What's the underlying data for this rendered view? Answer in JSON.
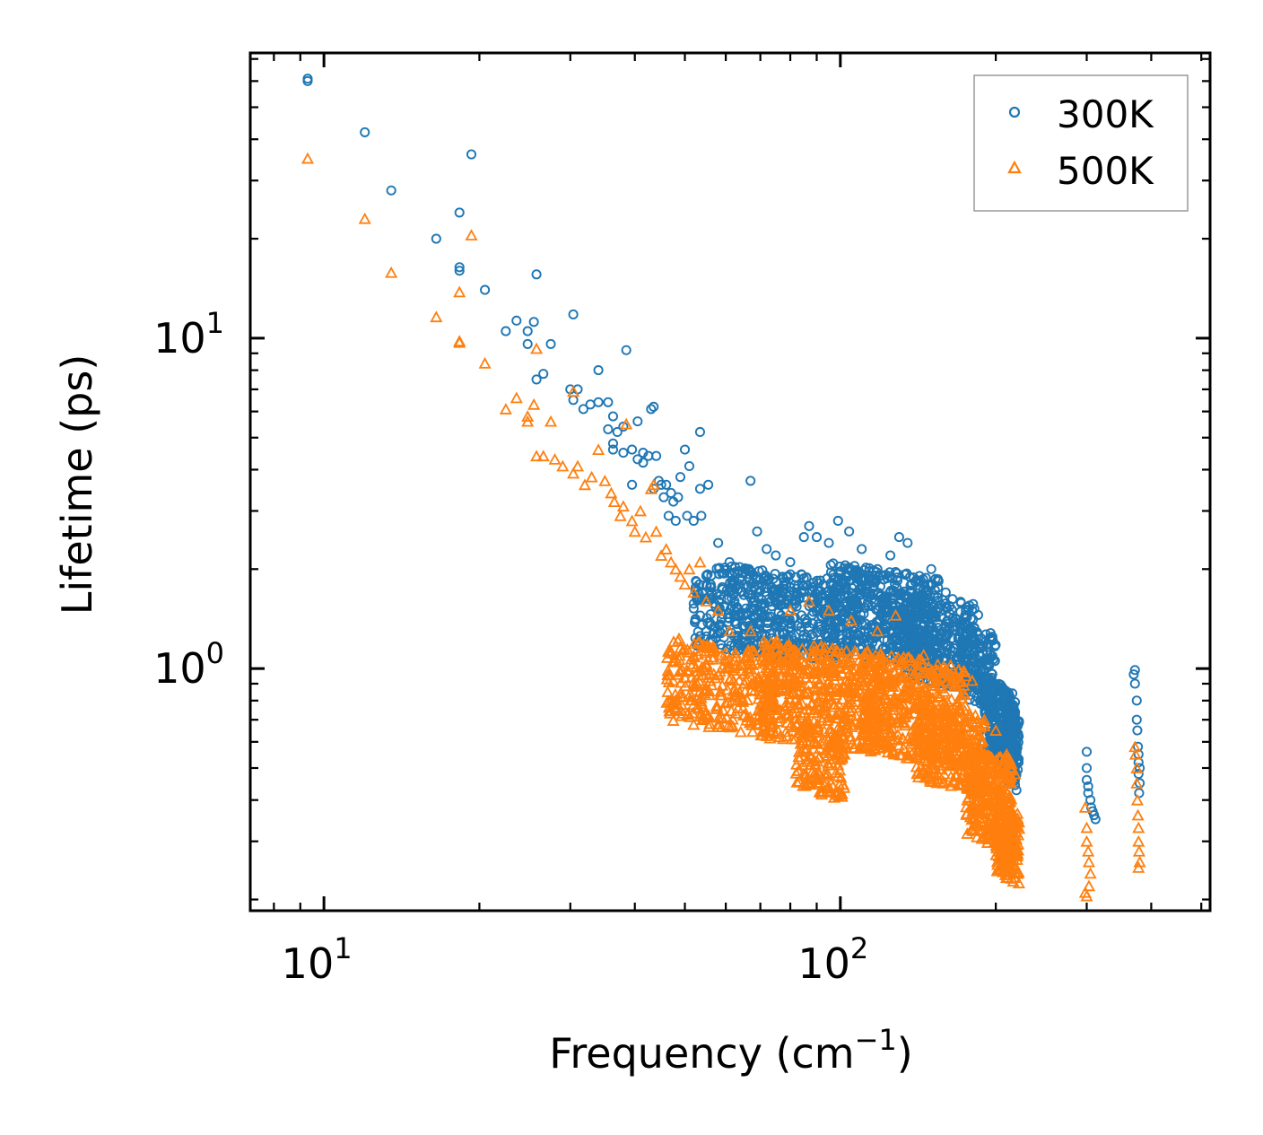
{
  "chart_data": {
    "type": "scatter",
    "title": "",
    "xlabel": "Frequency (cm",
    "xlabel_sup": "−1",
    "xlabel_close": ")",
    "ylabel": "Lifetime (ps)",
    "xscale": "log",
    "yscale": "log",
    "xlim": [
      7.2,
      520
    ],
    "ylim": [
      0.185,
      73
    ],
    "x_major_ticks": [
      {
        "value": 10,
        "base": "10",
        "exp": "1"
      },
      {
        "value": 100,
        "base": "10",
        "exp": "2"
      }
    ],
    "y_major_ticks": [
      {
        "value": 1,
        "base": "10",
        "exp": "0"
      },
      {
        "value": 10,
        "base": "10",
        "exp": "1"
      }
    ],
    "ticks_direction": "in",
    "ticks_on_all_sides": true,
    "grid": false,
    "legend_position": "top-right",
    "series": [
      {
        "name": "300K",
        "label": "300K",
        "marker": "circle-open",
        "color": "#1f77b4",
        "points": [
          [
            9.3,
            60
          ],
          [
            9.3,
            61
          ],
          [
            12,
            42
          ],
          [
            13.5,
            28
          ],
          [
            16.5,
            20
          ],
          [
            18.3,
            24
          ],
          [
            18.3,
            16
          ],
          [
            18.3,
            16.4
          ],
          [
            19.3,
            36
          ],
          [
            20.5,
            14
          ],
          [
            22.5,
            10.5
          ],
          [
            23.6,
            11.3
          ],
          [
            24.8,
            10.5
          ],
          [
            24.8,
            9.6
          ],
          [
            25.5,
            11.2
          ],
          [
            25.8,
            15.6
          ],
          [
            25.8,
            7.5
          ],
          [
            26.6,
            7.8
          ],
          [
            27.5,
            9.6
          ],
          [
            30,
            7
          ],
          [
            30.4,
            11.8
          ],
          [
            30.4,
            6.5
          ],
          [
            31,
            7
          ],
          [
            31.8,
            6.1
          ],
          [
            32.8,
            6.3
          ],
          [
            34,
            8
          ],
          [
            34,
            6.4
          ],
          [
            35.5,
            5.3
          ],
          [
            35.5,
            6.4
          ],
          [
            36.3,
            5.8
          ],
          [
            36.3,
            4.8
          ],
          [
            36.3,
            4.6
          ],
          [
            37,
            5.2
          ],
          [
            38,
            5.4
          ],
          [
            38,
            4.5
          ],
          [
            38.5,
            9.2
          ],
          [
            39.5,
            4.6
          ],
          [
            39.5,
            3.6
          ],
          [
            40.5,
            4.3
          ],
          [
            40.5,
            5.6
          ],
          [
            41.5,
            4.5
          ],
          [
            41.5,
            4.2
          ],
          [
            42.5,
            4.4
          ],
          [
            43,
            6.1
          ],
          [
            43.5,
            6.2
          ],
          [
            43.5,
            3.5
          ],
          [
            44,
            4.4
          ],
          [
            44.5,
            3.7
          ],
          [
            45,
            3.6
          ],
          [
            45.5,
            3.3
          ],
          [
            46,
            3.6
          ],
          [
            46.5,
            2.9
          ],
          [
            47,
            3.4
          ],
          [
            47.5,
            3.2
          ],
          [
            48,
            2.8
          ],
          [
            48.5,
            3.3
          ],
          [
            49,
            3.8
          ],
          [
            50,
            4.6
          ],
          [
            50.5,
            2.9
          ],
          [
            51,
            4.1
          ],
          [
            52,
            2.8
          ],
          [
            53.5,
            5.2
          ],
          [
            53.5,
            3.5
          ],
          [
            53.8,
            2.9
          ],
          [
            55.5,
            3.6
          ],
          [
            58,
            2.4
          ],
          [
            61,
            2.1
          ],
          [
            67,
            3.7
          ],
          [
            69,
            2.6
          ],
          [
            72,
            2.3
          ],
          [
            75,
            2.2
          ],
          [
            80,
            2.1
          ],
          [
            85,
            2.5
          ],
          [
            87,
            2.7
          ],
          [
            90,
            2.5
          ],
          [
            95,
            2.4
          ],
          [
            99,
            2.8
          ],
          [
            104,
            2.6
          ],
          [
            110,
            2.3
          ],
          [
            118,
            2.0
          ],
          [
            125,
            2.2
          ],
          [
            130,
            2.5
          ],
          [
            135,
            2.4
          ],
          [
            145,
            1.8
          ],
          [
            150,
            2.0
          ],
          [
            160,
            1.7
          ],
          [
            175,
            1.5
          ],
          [
            180,
            1.5
          ],
          [
            190,
            1.2
          ],
          [
            195,
            1.1
          ],
          [
            300,
            0.56
          ],
          [
            300,
            0.5
          ],
          [
            300,
            0.46
          ],
          [
            302,
            0.44
          ],
          [
            302,
            0.42
          ],
          [
            305,
            0.4
          ],
          [
            306,
            0.38
          ],
          [
            308,
            0.37
          ],
          [
            310,
            0.36
          ],
          [
            312,
            0.35
          ],
          [
            370,
            0.96
          ],
          [
            372,
            0.99
          ],
          [
            372,
            0.9
          ],
          [
            375,
            0.8
          ],
          [
            375,
            0.7
          ],
          [
            376,
            0.65
          ],
          [
            377,
            0.58
          ],
          [
            378,
            0.55
          ],
          [
            378,
            0.52
          ],
          [
            380,
            0.5
          ],
          [
            378,
            0.48
          ],
          [
            380,
            0.45
          ],
          [
            379,
            0.42
          ]
        ],
        "clusters": [
          {
            "x": [
              52,
              98
            ],
            "y": [
              1.05,
              2.1
            ],
            "count": 520
          },
          {
            "x": [
              95,
              155
            ],
            "y": [
              1.0,
              2.1
            ],
            "count": 520
          },
          {
            "x": [
              130,
              185
            ],
            "y": [
              0.85,
              1.75
            ],
            "count": 300
          },
          {
            "x": [
              170,
              200
            ],
            "y": [
              0.75,
              1.4
            ],
            "count": 160
          },
          {
            "x": [
              190,
              218
            ],
            "y": [
              0.48,
              0.95
            ],
            "count": 280
          },
          {
            "x": [
              208,
              222
            ],
            "y": [
              0.42,
              0.78
            ],
            "count": 130
          }
        ]
      },
      {
        "name": "500K",
        "label": "500K",
        "marker": "triangle-open",
        "color": "#ff7f0e",
        "points": [
          [
            9.3,
            35
          ],
          [
            12,
            23
          ],
          [
            13.5,
            15.8
          ],
          [
            16.5,
            11.6
          ],
          [
            18.3,
            13.8
          ],
          [
            18.3,
            9.7
          ],
          [
            18.3,
            9.8
          ],
          [
            19.3,
            20.5
          ],
          [
            20.5,
            8.4
          ],
          [
            22.5,
            6.1
          ],
          [
            23.6,
            6.6
          ],
          [
            24.8,
            5.8
          ],
          [
            24.8,
            5.6
          ],
          [
            25.5,
            6.3
          ],
          [
            25.8,
            9.3
          ],
          [
            25.8,
            4.4
          ],
          [
            26.6,
            4.4
          ],
          [
            27.5,
            5.6
          ],
          [
            28,
            4.3
          ],
          [
            29,
            4.1
          ],
          [
            30.4,
            6.9
          ],
          [
            30.4,
            3.9
          ],
          [
            31,
            4.1
          ],
          [
            32,
            3.6
          ],
          [
            33,
            3.8
          ],
          [
            34,
            4.6
          ],
          [
            35,
            3.7
          ],
          [
            36,
            3.4
          ],
          [
            36.5,
            3.2
          ],
          [
            37.5,
            2.9
          ],
          [
            38.5,
            5.5
          ],
          [
            38,
            3.1
          ],
          [
            39.5,
            2.8
          ],
          [
            40,
            2.6
          ],
          [
            41,
            3.0
          ],
          [
            42,
            2.5
          ],
          [
            43,
            3.5
          ],
          [
            43.5,
            3.6
          ],
          [
            44,
            2.6
          ],
          [
            45,
            2.2
          ],
          [
            46,
            2.3
          ],
          [
            47,
            2.1
          ],
          [
            48,
            2.0
          ],
          [
            49,
            1.9
          ],
          [
            50,
            1.8
          ],
          [
            51,
            2.0
          ],
          [
            52,
            1.7
          ],
          [
            53.5,
            2.1
          ],
          [
            55,
            1.6
          ],
          [
            58,
            1.5
          ],
          [
            61,
            1.3
          ],
          [
            67,
            1.3
          ],
          [
            75,
            1.2
          ],
          [
            80,
            1.5
          ],
          [
            87,
            1.6
          ],
          [
            95,
            1.5
          ],
          [
            105,
            1.4
          ],
          [
            118,
            1.3
          ],
          [
            128,
            1.45
          ],
          [
            145,
            1.1
          ],
          [
            160,
            1.0
          ],
          [
            175,
            0.95
          ],
          [
            180,
            0.92
          ],
          [
            190,
            0.7
          ],
          [
            200,
            0.65
          ],
          [
            210,
            0.55
          ],
          [
            215,
            0.5
          ],
          [
            218,
            0.48
          ],
          [
            298,
            0.38
          ],
          [
            300,
            0.33
          ],
          [
            300,
            0.3
          ],
          [
            302,
            0.28
          ],
          [
            303,
            0.26
          ],
          [
            305,
            0.24
          ],
          [
            303,
            0.22
          ],
          [
            300,
            0.205
          ],
          [
            298,
            0.21
          ],
          [
            372,
            0.58
          ],
          [
            373,
            0.55
          ],
          [
            375,
            0.5
          ],
          [
            375,
            0.45
          ],
          [
            376,
            0.4
          ],
          [
            377,
            0.36
          ],
          [
            378,
            0.33
          ],
          [
            378,
            0.3
          ],
          [
            379,
            0.28
          ],
          [
            380,
            0.26
          ],
          [
            378,
            0.25
          ]
        ],
        "clusters": [
          {
            "x": [
              46,
              75
            ],
            "y": [
              0.62,
              1.25
            ],
            "count": 300
          },
          {
            "x": [
              70,
              120
            ],
            "y": [
              0.55,
              1.25
            ],
            "count": 520
          },
          {
            "x": [
              82,
              102
            ],
            "y": [
              0.4,
              0.7
            ],
            "count": 140
          },
          {
            "x": [
              110,
              175
            ],
            "y": [
              0.5,
              1.15
            ],
            "count": 480
          },
          {
            "x": [
              140,
              190
            ],
            "y": [
              0.42,
              0.8
            ],
            "count": 260
          },
          {
            "x": [
              175,
              215
            ],
            "y": [
              0.28,
              0.6
            ],
            "count": 300
          },
          {
            "x": [
              200,
              222
            ],
            "y": [
              0.22,
              0.4
            ],
            "count": 160
          }
        ]
      }
    ]
  }
}
